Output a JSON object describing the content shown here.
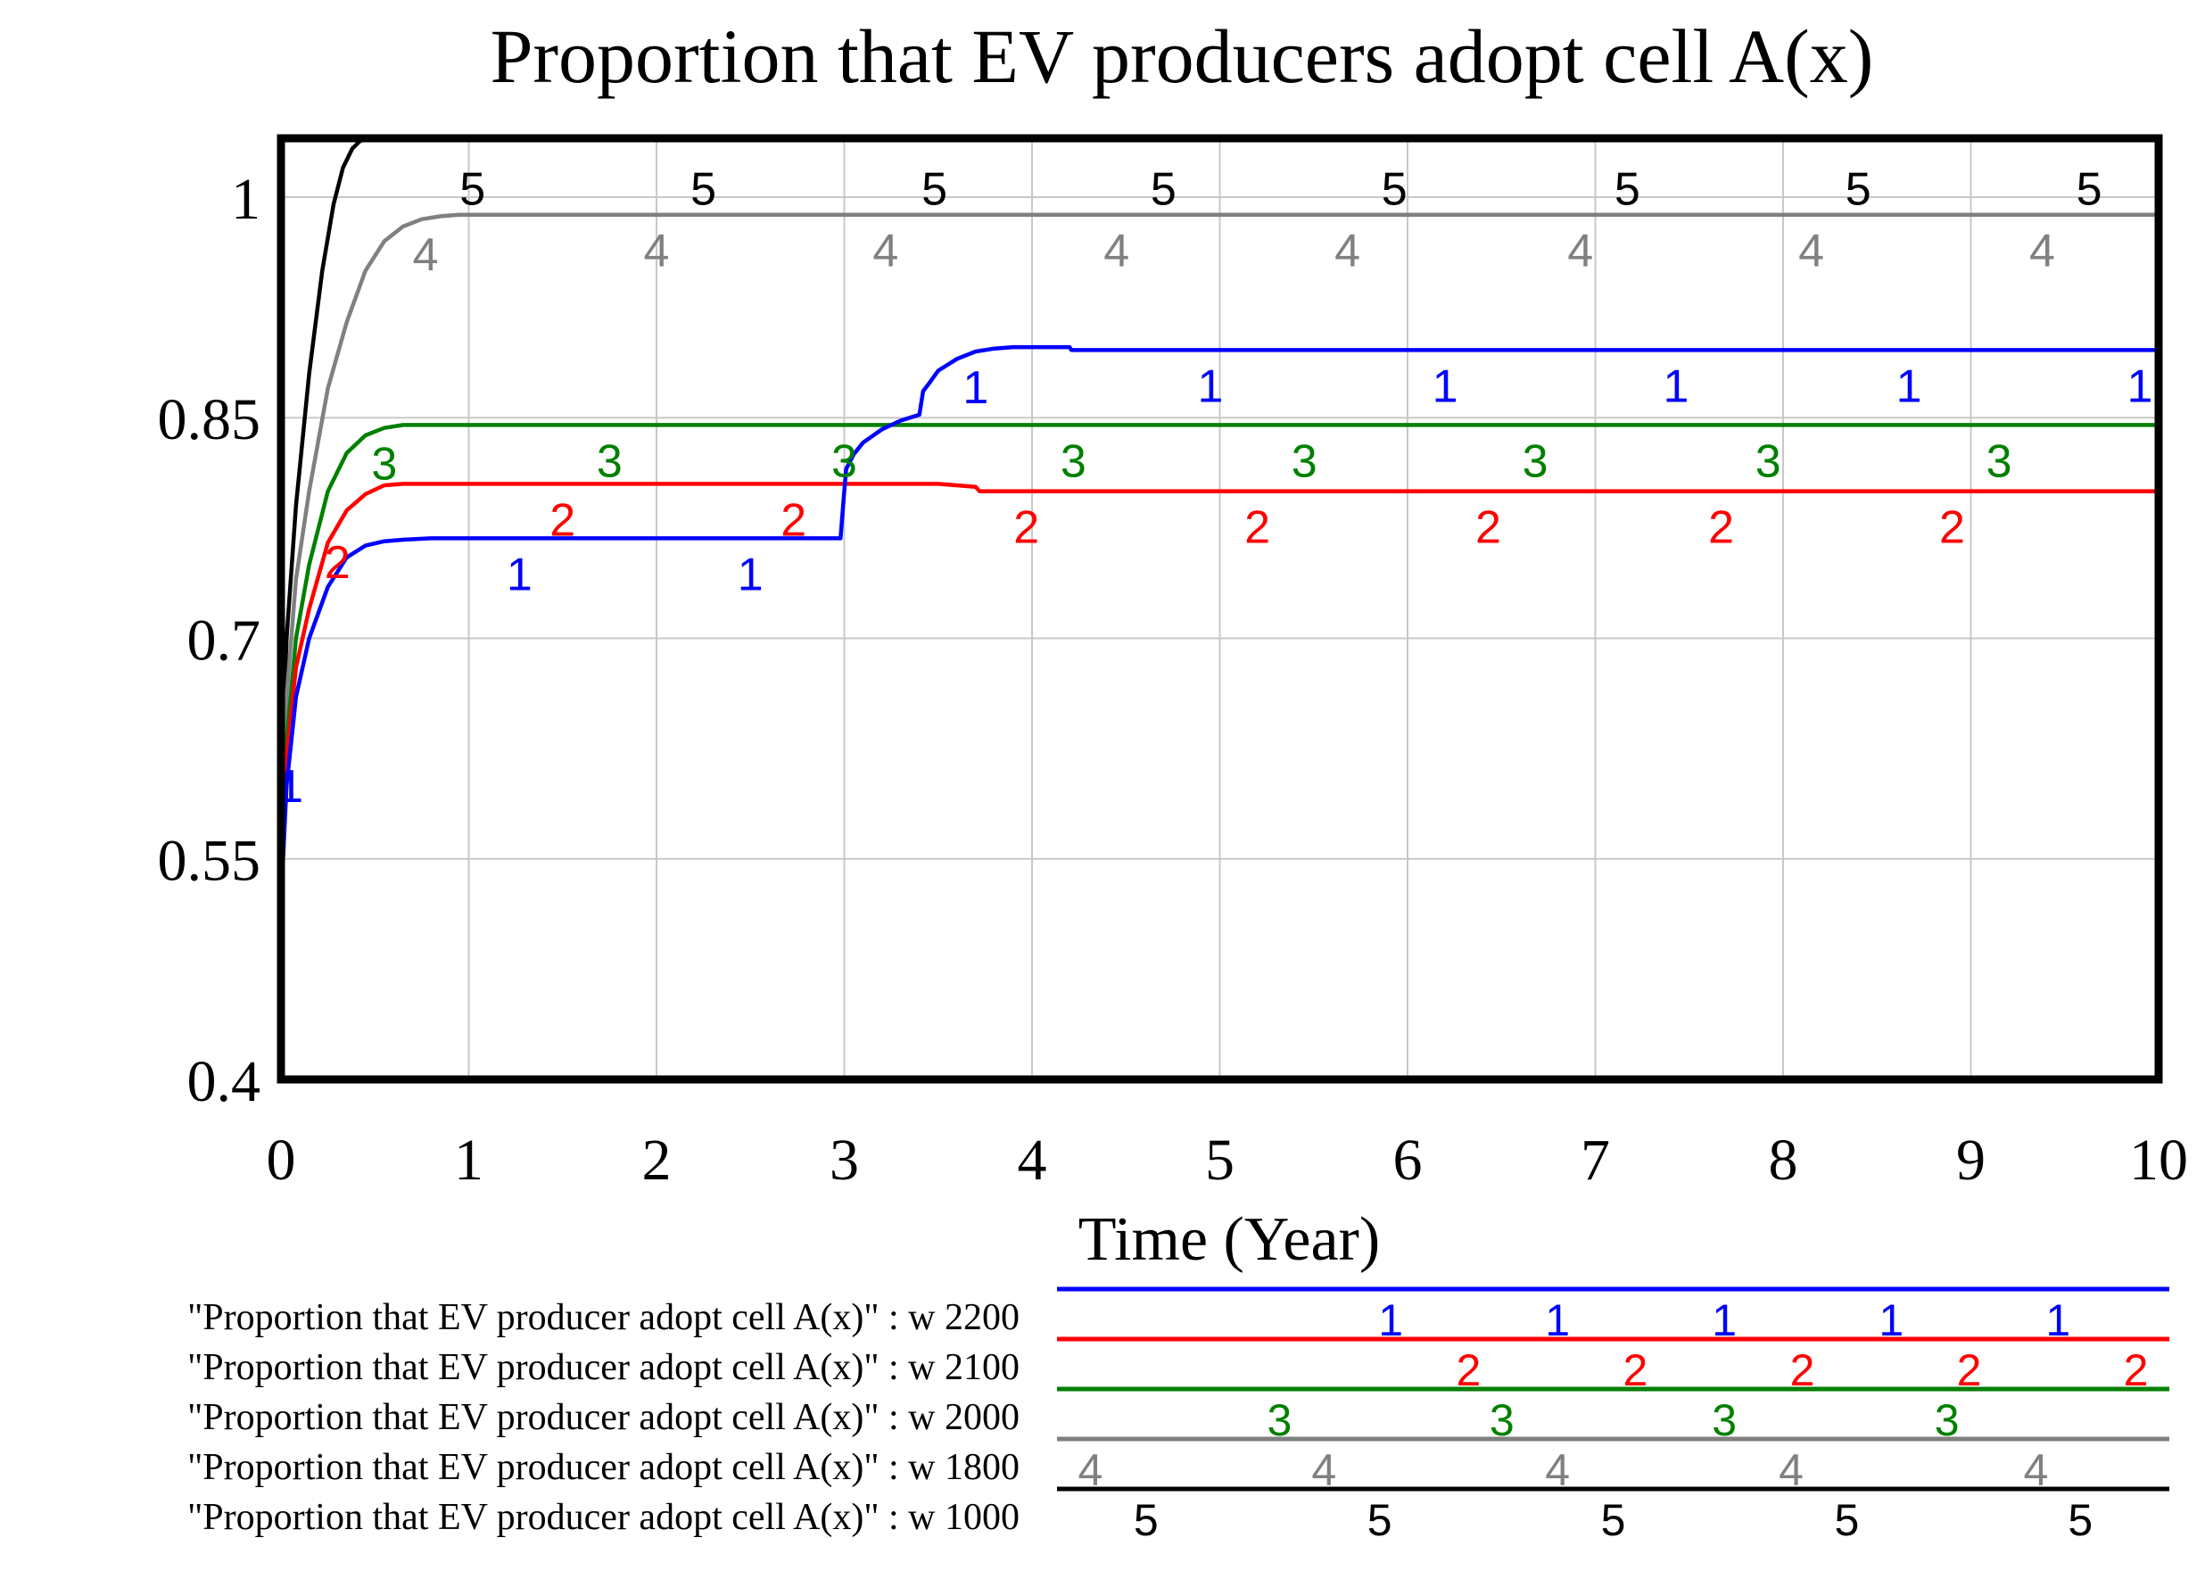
{
  "chart_data": {
    "type": "line",
    "title": "Proportion that EV producers adopt cell A(x)",
    "xlabel": "Time (Year)",
    "ylabel": "",
    "xlim": [
      0,
      10
    ],
    "ylim": [
      0.4,
      1.04
    ],
    "x_ticks": [
      "0",
      "1",
      "2",
      "3",
      "4",
      "5",
      "6",
      "7",
      "8",
      "9",
      "10"
    ],
    "y_ticks": [
      "0.4",
      "0.55",
      "0.7",
      "0.85",
      "1"
    ],
    "y_tick_values": [
      0.4,
      0.55,
      0.7,
      0.85,
      1.0
    ],
    "grid": true,
    "legend_position": "bottom",
    "series": [
      {
        "id": "1",
        "name": "\"Proportion that EV producer adopt cell A(x)\" : w 2200",
        "color": "#0000ff",
        "x": [
          0,
          0.03,
          0.08,
          0.15,
          0.25,
          0.35,
          0.45,
          0.55,
          0.65,
          0.8,
          1.0,
          1.5,
          2.0,
          2.5,
          2.98,
          3.0,
          3.01,
          3.05,
          3.1,
          3.2,
          3.3,
          3.4,
          3.42,
          3.45,
          3.5,
          3.6,
          3.7,
          3.8,
          3.9,
          4.2,
          4.21,
          10
        ],
        "y": [
          0.52,
          0.6,
          0.66,
          0.7,
          0.735,
          0.755,
          0.763,
          0.766,
          0.767,
          0.768,
          0.768,
          0.768,
          0.768,
          0.768,
          0.768,
          0.8,
          0.815,
          0.825,
          0.833,
          0.842,
          0.848,
          0.852,
          0.868,
          0.873,
          0.882,
          0.89,
          0.895,
          0.897,
          0.898,
          0.898,
          0.896,
          0.896
        ],
        "marker_x": [
          0.05,
          1.27,
          2.5,
          3.7,
          4.95,
          6.2,
          7.43,
          8.67,
          9.9
        ],
        "legend_marker_x": [
          0.3,
          0.45,
          0.6,
          0.75,
          0.9
        ]
      },
      {
        "id": "2",
        "name": "\"Proportion that EV producer adopt cell A(x)\" : w 2100",
        "color": "#ff0000",
        "x": [
          0,
          0.03,
          0.08,
          0.15,
          0.25,
          0.35,
          0.45,
          0.55,
          0.65,
          1.0,
          2.0,
          3.0,
          3.5,
          3.7,
          3.72,
          10
        ],
        "y": [
          0.55,
          0.62,
          0.68,
          0.72,
          0.765,
          0.787,
          0.798,
          0.804,
          0.805,
          0.805,
          0.805,
          0.805,
          0.805,
          0.803,
          0.8,
          0.8
        ],
        "marker_x": [
          0.3,
          1.5,
          2.73,
          3.97,
          5.2,
          6.43,
          7.67,
          8.9
        ],
        "legend_marker_x": [
          0.37,
          0.52,
          0.67,
          0.82,
          0.97
        ]
      },
      {
        "id": "3",
        "name": "\"Proportion that EV producer adopt cell A(x)\" : w 2000",
        "color": "#008000",
        "x": [
          0,
          0.03,
          0.08,
          0.15,
          0.25,
          0.35,
          0.45,
          0.55,
          0.65,
          1.0,
          10
        ],
        "y": [
          0.56,
          0.63,
          0.7,
          0.75,
          0.8,
          0.826,
          0.838,
          0.843,
          0.845,
          0.845,
          0.845
        ],
        "marker_x": [
          0.55,
          1.75,
          3.0,
          4.22,
          5.45,
          6.68,
          7.92,
          9.15
        ],
        "legend_marker_x": [
          0.2,
          0.4,
          0.6,
          0.8
        ]
      },
      {
        "id": "4",
        "name": "\"Proportion that EV producer adopt cell A(x)\" : w 1800",
        "color": "#808080",
        "x": [
          0,
          0.03,
          0.08,
          0.15,
          0.25,
          0.35,
          0.45,
          0.55,
          0.65,
          0.75,
          0.85,
          0.95,
          1.2,
          10
        ],
        "y": [
          0.58,
          0.66,
          0.74,
          0.8,
          0.87,
          0.915,
          0.95,
          0.97,
          0.98,
          0.985,
          0.987,
          0.988,
          0.988,
          0.988
        ],
        "marker_x": [
          0.77,
          2.0,
          3.22,
          4.45,
          5.68,
          6.92,
          8.15,
          9.38
        ],
        "legend_marker_x": [
          0.03,
          0.24,
          0.45,
          0.66,
          0.88
        ]
      },
      {
        "id": "5",
        "name": "\"Proportion that EV producer adopt cell A(x)\" : w 1000",
        "color": "#000000",
        "x": [
          0,
          0.03,
          0.08,
          0.15,
          0.22,
          0.28,
          0.33,
          0.38,
          0.42,
          0.46
        ],
        "y": [
          0.6,
          0.7,
          0.79,
          0.88,
          0.95,
          0.995,
          1.02,
          1.033,
          1.038,
          1.04
        ],
        "marker_x": [
          1.02,
          2.25,
          3.48,
          4.7,
          5.93,
          7.17,
          8.4,
          9.63
        ],
        "legend_marker_x": [
          0.08,
          0.29,
          0.5,
          0.71,
          0.92
        ]
      }
    ]
  }
}
